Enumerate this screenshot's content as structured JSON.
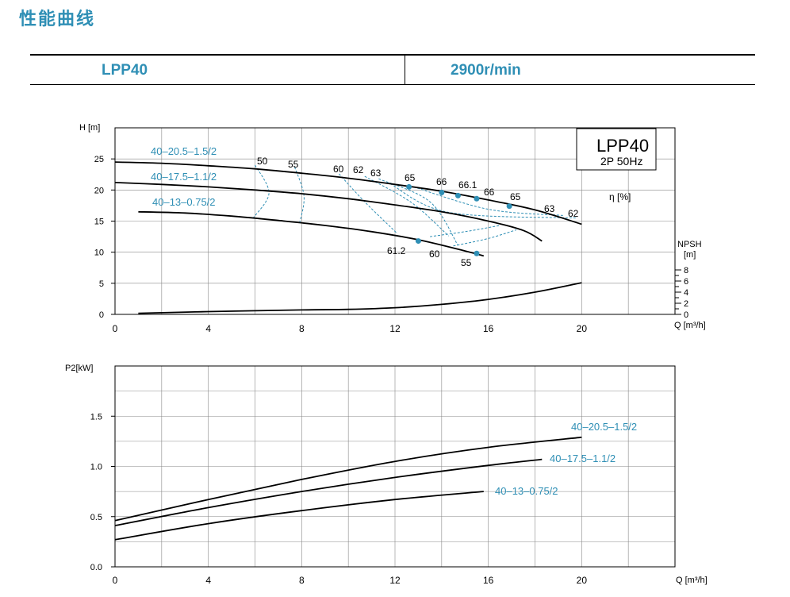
{
  "page_title": "性能曲线",
  "header": {
    "model": "LPP40",
    "speed": "2900r/min"
  },
  "colors": {
    "accent": "#2f8fb5",
    "curve": "#000000",
    "grid": "#888888"
  },
  "chart_data": [
    {
      "type": "line",
      "id": "head-curve",
      "ylabel": "H [m]",
      "xlabel": "Q [m³/h]",
      "xlim": [
        0,
        24
      ],
      "ylim": [
        0,
        30
      ],
      "xticks": [
        0,
        4,
        8,
        12,
        16,
        20
      ],
      "yticks": [
        0,
        5,
        10,
        15,
        20,
        25
      ],
      "grid": true,
      "info_box": {
        "title": "LPP40",
        "subtitle": "2P  50Hz"
      },
      "eta_label": "η [%]",
      "series": [
        {
          "name": "40–20.5–1.5/2",
          "x": [
            0,
            2,
            4,
            6,
            8,
            10,
            12,
            14,
            16,
            18,
            20
          ],
          "y": [
            24.5,
            24.3,
            23.9,
            23.4,
            22.7,
            21.9,
            20.9,
            19.8,
            18.4,
            16.8,
            14.5
          ]
        },
        {
          "name": "40–17.5–1.1/2",
          "x": [
            0,
            2,
            4,
            6,
            8,
            10,
            12,
            14,
            16,
            17.5,
            18.3
          ],
          "y": [
            21.2,
            20.9,
            20.5,
            20.0,
            19.4,
            18.6,
            17.6,
            16.5,
            15.0,
            13.5,
            11.8
          ]
        },
        {
          "name": "40–13–0.75/2",
          "x": [
            1,
            3,
            5,
            7,
            9,
            11,
            13,
            15,
            15.8
          ],
          "y": [
            16.5,
            16.3,
            15.8,
            15.1,
            14.3,
            13.3,
            12.0,
            10.2,
            9.4
          ]
        }
      ],
      "npsh": {
        "label": "NPSH",
        "unit": "[m]",
        "ticks": [
          0,
          2,
          4,
          6,
          8
        ],
        "x": [
          1,
          4,
          8,
          10,
          12,
          14,
          16,
          18,
          20
        ],
        "y": [
          0.2,
          0.5,
          0.8,
          0.9,
          1.2,
          1.8,
          2.7,
          4.0,
          5.7
        ]
      },
      "efficiency_points": [
        {
          "label": "65",
          "x": 12.6,
          "y": 20.5
        },
        {
          "label": "66",
          "x": 14.0,
          "y": 19.6
        },
        {
          "label": "66.1",
          "x": 14.7,
          "y": 19.1
        },
        {
          "label": "66",
          "x": 15.5,
          "y": 18.6
        },
        {
          "label": "65",
          "x": 16.9,
          "y": 17.4
        },
        {
          "label": "61.2",
          "x": 13.0,
          "y": 11.8
        },
        {
          "label": "55",
          "x": 15.5,
          "y": 9.8
        }
      ],
      "iso_labels": [
        {
          "label": "50",
          "x": 6.2,
          "y": 24.0
        },
        {
          "label": "55",
          "x": 7.8,
          "y": 23.6
        },
        {
          "label": "60",
          "x": 9.6,
          "y": 23.0
        },
        {
          "label": "62",
          "x": 10.5,
          "y": 22.9
        },
        {
          "label": "63",
          "x": 11.3,
          "y": 22.6
        },
        {
          "label": "63",
          "x": 18.2,
          "y": 16.5
        },
        {
          "label": "62",
          "x": 19.5,
          "y": 15.9
        },
        {
          "label": "60",
          "x": 13.8,
          "y": 9.6
        },
        {
          "label": "55",
          "x": 15.0,
          "y": 8.0
        },
        {
          "label": "61.2",
          "x": 12.6,
          "y": 9.9
        }
      ]
    },
    {
      "type": "line",
      "id": "power-curve",
      "ylabel": "P2[kW]",
      "xlabel": "Q [m³/h]",
      "xlim": [
        0,
        24
      ],
      "ylim": [
        0,
        2.0
      ],
      "xticks": [
        0,
        4,
        8,
        12,
        16,
        20
      ],
      "yticks": [
        0.0,
        0.5,
        1.0,
        1.5
      ],
      "ytick_labels": [
        "0.0",
        "0.5",
        "1.0",
        "1.5"
      ],
      "grid": true,
      "series": [
        {
          "name": "40–20.5–1.5/2",
          "x": [
            0,
            4,
            8,
            12,
            16,
            20
          ],
          "y": [
            0.46,
            0.67,
            0.87,
            1.05,
            1.19,
            1.29
          ]
        },
        {
          "name": "40–17.5–1.1/2",
          "x": [
            0,
            4,
            8,
            12,
            16,
            18.3
          ],
          "y": [
            0.41,
            0.59,
            0.75,
            0.89,
            1.01,
            1.07
          ]
        },
        {
          "name": "40–13–0.75/2",
          "x": [
            0,
            4,
            8,
            12,
            15.8
          ],
          "y": [
            0.27,
            0.43,
            0.56,
            0.67,
            0.75
          ]
        }
      ]
    }
  ]
}
